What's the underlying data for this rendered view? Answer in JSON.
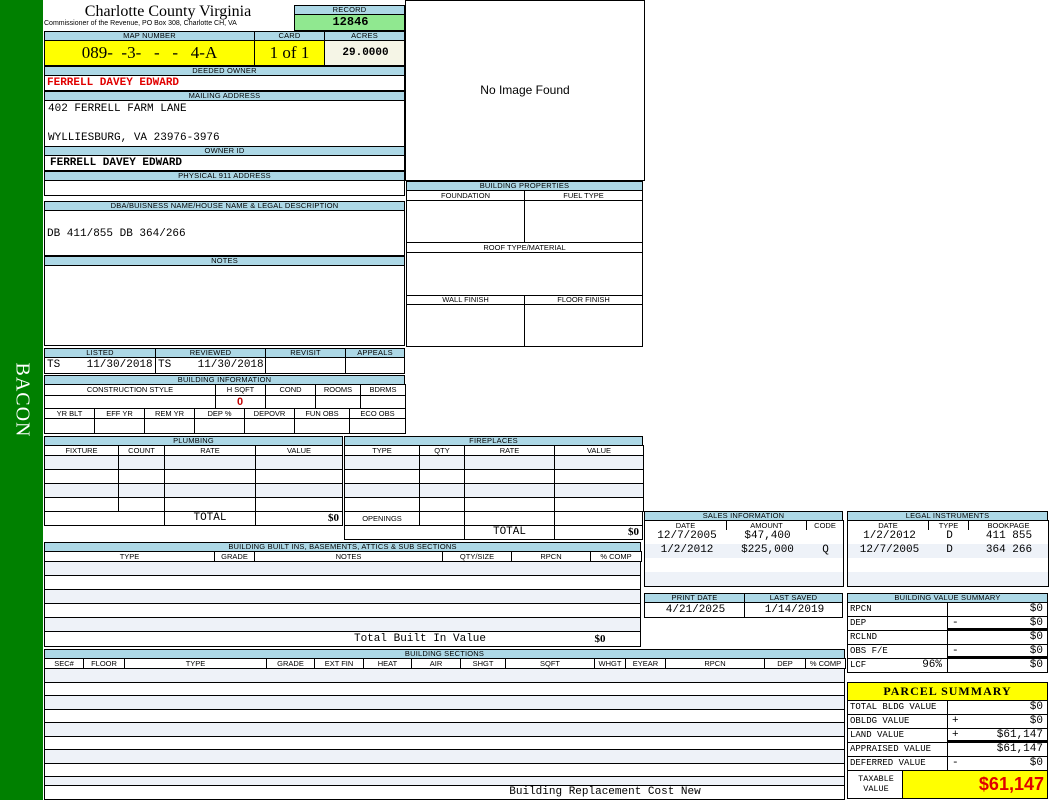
{
  "sidebar": {
    "label": "BACON"
  },
  "header": {
    "title": "Charlotte County Virginia",
    "subtitle": "Commissioner of the Revenue, PO Box 308, Charlotte CH, VA",
    "record_label": "RECORD",
    "record": "12846"
  },
  "parcel": {
    "map_label": "MAP NUMBER",
    "map": "089-  -3-   -   -   4-A",
    "card_label": "CARD",
    "card": "1 of 1",
    "acres_label": "ACRES",
    "acres": "29.0000"
  },
  "owner": {
    "deeded_label": "DEEDED OWNER",
    "deeded": "FERRELL DAVEY EDWARD",
    "mailing_label": "MAILING ADDRESS",
    "mailing1": "402 FERRELL FARM LANE",
    "mailing2": "WYLLIESBURG, VA 23976-3976",
    "id_label": "OWNER ID",
    "id": "FERRELL DAVEY EDWARD",
    "physical_label": "PHYSICAL 911 ADDRESS",
    "physical": ""
  },
  "image": {
    "text": "No Image Found"
  },
  "building_properties": {
    "title": "BUILDING PROPERTIES",
    "foundation": "FOUNDATION",
    "fuel": "FUEL TYPE",
    "roof": "ROOF TYPE/MATERIAL",
    "wall": "WALL FINISH",
    "floor": "FLOOR FINISH"
  },
  "legal": {
    "title": "DBA/BUISNESS NAME/HOUSE NAME & LEGAL DESCRIPTION",
    "value": "DB 411/855 DB 364/266",
    "notes_label": "NOTES"
  },
  "review": {
    "listed_label": "LISTED",
    "listed": "TS    11/30/2018",
    "reviewed_label": "REVIEWED",
    "reviewed": "TS    11/30/2018",
    "revisit_label": "REVISIT",
    "appeals_label": "APPEALS"
  },
  "building_info": {
    "title": "BUILDING INFORMATION",
    "cols1": [
      "CONSTRUCTION STYLE",
      "H SQFT",
      "COND",
      "ROOMS",
      "BDRMS"
    ],
    "hsqft": "0",
    "cols2": [
      "YR BLT",
      "EFF YR",
      "REM YR",
      "DEP %",
      "DEPOVR",
      "FUN OBS",
      "ECO OBS"
    ]
  },
  "plumbing": {
    "title": "PLUMBING",
    "cols": [
      "FIXTURE",
      "COUNT",
      "RATE",
      "VALUE"
    ],
    "total_label": "TOTAL",
    "total": "$0"
  },
  "fireplaces": {
    "title": "FIREPLACES",
    "cols": [
      "TYPE",
      "QTY",
      "RATE",
      "VALUE"
    ],
    "openings": "OPENINGS",
    "total_label": "TOTAL",
    "total": "$0"
  },
  "builtins": {
    "title": "BUILDING BUILT INS, BASEMENTS, ATTICS & SUB SECTIONS",
    "cols": [
      "TYPE",
      "GRADE",
      "NOTES",
      "QTY/SIZE",
      "RPCN",
      "% COMP"
    ],
    "total_label": "Total Built In Value",
    "total": "$0"
  },
  "sections": {
    "title": "BUILDING SECTIONS",
    "cols": [
      "SEC#",
      "FLOOR",
      "TYPE",
      "GRADE",
      "EXT FIN",
      "HEAT",
      "AIR",
      "SHGT",
      "SQFT",
      "WHGT",
      "EYEAR",
      "RPCN",
      "DEP",
      "% COMP"
    ],
    "footer": "Building Replacement Cost New"
  },
  "sales": {
    "title": "SALES INFORMATION",
    "cols": [
      "DATE",
      "AMOUNT",
      "CODE"
    ],
    "rows": [
      [
        "12/7/2005",
        "$47,400",
        ""
      ],
      [
        "1/2/2012",
        "$225,000",
        "Q"
      ]
    ]
  },
  "instruments": {
    "title": "LEGAL INSTRUMENTS",
    "cols": [
      "DATE",
      "TYPE",
      "BOOKPAGE"
    ],
    "rows": [
      [
        "1/2/2012",
        "D",
        "411 855"
      ],
      [
        "12/7/2005",
        "D",
        "364 266"
      ]
    ]
  },
  "dates": {
    "print_label": "PRINT DATE",
    "print": "4/21/2025",
    "saved_label": "LAST SAVED",
    "saved": "1/14/2019"
  },
  "value_summary": {
    "title": "BUILDING VALUE SUMMARY",
    "rows": [
      {
        "label": "RPCN",
        "op": "",
        "value": "$0"
      },
      {
        "label": "DEP",
        "op": "-",
        "value": "$0"
      },
      {
        "label": "RCLND",
        "op": "",
        "value": "$0"
      },
      {
        "label": "OBS F/E",
        "op": "-",
        "value": "$0"
      },
      {
        "label": "LCF",
        "pct": "96%",
        "op": "",
        "value": "$0"
      }
    ]
  },
  "parcel_summary": {
    "title": "PARCEL SUMMARY",
    "rows": [
      {
        "label": "TOTAL BLDG VALUE",
        "op": "",
        "value": "$0"
      },
      {
        "label": "OBLDG VALUE",
        "op": "+",
        "value": "$0"
      },
      {
        "label": "LAND VALUE",
        "op": "+",
        "value": "$61,147"
      },
      {
        "label": "APPRAISED VALUE",
        "op": "",
        "value": "$61,147"
      },
      {
        "label": "DEFERRED VALUE",
        "op": "-",
        "value": "$0"
      }
    ],
    "taxable_label": "TAXABLE VALUE",
    "taxable": "$61,147"
  },
  "colors": {
    "header": "#add8e6",
    "accent_yellow": "#ffff00",
    "record_green": "#90e890",
    "sidebar": "#008000",
    "owner_red": "#e00000"
  }
}
